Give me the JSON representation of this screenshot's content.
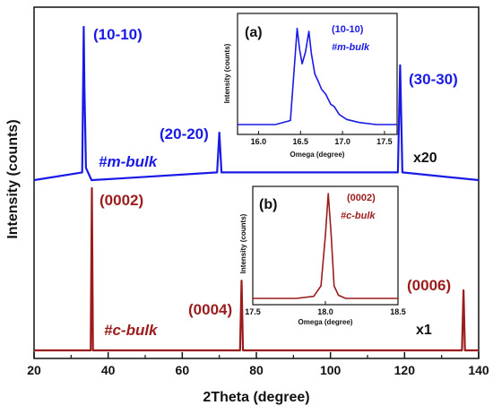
{
  "chart_data": [
    {
      "type": "line",
      "xlabel": "2Theta (degree)",
      "ylabel": "Intensity (counts)",
      "xlim": [
        20,
        140
      ],
      "x_ticks": [
        "20",
        "40",
        "60",
        "80",
        "100",
        "120",
        "140"
      ],
      "colors": {
        "m_bulk": "#1a1ae6",
        "c_bulk": "#9b1c1c"
      },
      "series": [
        {
          "name": "#m-bulk",
          "scale_label": "x20",
          "baseline": 0.0,
          "x": [
            20,
            33.0,
            33.4,
            33.6,
            34.0,
            35.5,
            42.5,
            69.4,
            70.0,
            70.6,
            118.2,
            118.8,
            119.4,
            140
          ],
          "y": [
            0.0,
            0.05,
            1.0,
            0.6,
            0.08,
            0.0,
            0.01,
            0.05,
            0.31,
            0.05,
            0.05,
            0.75,
            0.05,
            0.0
          ],
          "peaks": [
            {
              "x": 33.4,
              "label": "(10-10)"
            },
            {
              "x": 70.0,
              "label": "(20-20)"
            },
            {
              "x": 118.8,
              "label": "(30-30)"
            }
          ]
        },
        {
          "name": "#c-bulk",
          "scale_label": "x1",
          "x": [
            20,
            35.3,
            35.6,
            35.9,
            75.6,
            76.0,
            76.4,
            135.5,
            135.9,
            136.3,
            140
          ],
          "y": [
            0.0,
            0.0,
            1.0,
            0.0,
            0.0,
            0.43,
            0.0,
            0.0,
            0.37,
            0.0,
            0.0
          ],
          "peaks": [
            {
              "x": 35.6,
              "label": "(0002)"
            },
            {
              "x": 76.0,
              "label": "(0004)"
            },
            {
              "x": 135.9,
              "label": "(0006)"
            }
          ]
        }
      ]
    },
    {
      "type": "line",
      "panel_label": "(a)",
      "peak_label": "(10-10)",
      "sample_label": "#m-bulk",
      "xlabel": "Omega (degree)",
      "ylabel": "Intensity (counts)",
      "xlim": [
        15.75,
        17.65
      ],
      "x_ticks": [
        "16.0",
        "16.5",
        "17.0",
        "17.5"
      ],
      "x": [
        15.75,
        16.2,
        16.38,
        16.42,
        16.46,
        16.49,
        16.52,
        16.56,
        16.6,
        16.63,
        16.67,
        16.71,
        16.75,
        16.8,
        16.86,
        16.9,
        16.96,
        17.05,
        17.2,
        17.4,
        17.65
      ],
      "y": [
        0.0,
        0.0,
        0.04,
        0.5,
        0.95,
        0.74,
        0.6,
        0.72,
        0.92,
        0.7,
        0.5,
        0.43,
        0.35,
        0.3,
        0.2,
        0.18,
        0.1,
        0.05,
        0.02,
        0.0,
        0.0
      ]
    },
    {
      "type": "line",
      "panel_label": "(b)",
      "peak_label": "(0002)",
      "sample_label": "#c-bulk",
      "xlabel": "Omega (degree)",
      "ylabel": "Intensity (counts)",
      "xlim": [
        17.5,
        18.5
      ],
      "x_ticks": [
        "17.5",
        "18.0",
        "18.5"
      ],
      "x": [
        17.5,
        17.8,
        17.92,
        17.97,
        18.0,
        18.02,
        18.04,
        18.06,
        18.09,
        18.14,
        18.3,
        18.5
      ],
      "y": [
        0.0,
        0.0,
        0.02,
        0.12,
        0.6,
        1.0,
        0.6,
        0.12,
        0.03,
        0.0,
        0.0,
        0.0
      ]
    }
  ]
}
